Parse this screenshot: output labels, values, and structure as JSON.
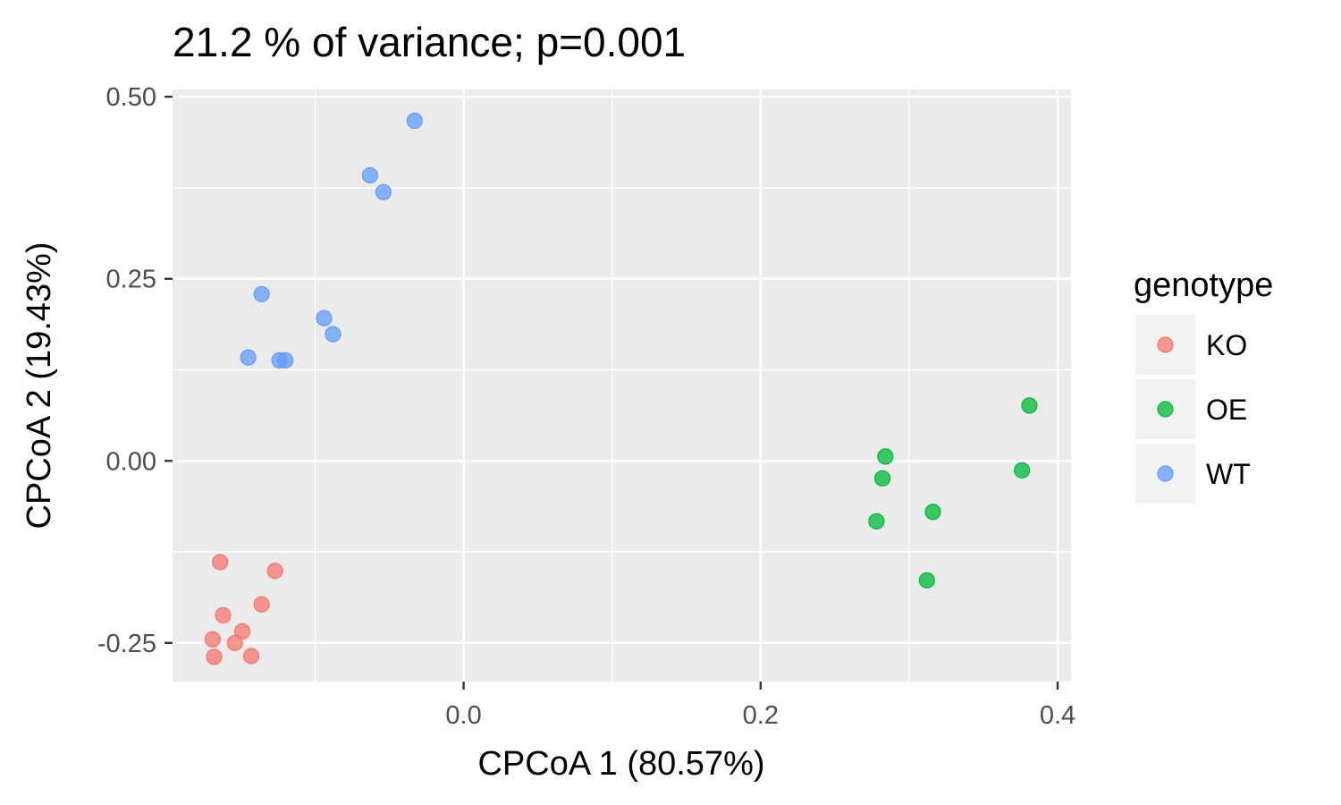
{
  "chart_data": {
    "type": "scatter",
    "title": "21.2 % of variance; p=0.001",
    "xlabel": "CPCoA 1 (80.57%)",
    "ylabel": "CPCoA 2 (19.43%)",
    "xlim": [
      -0.196,
      0.409
    ],
    "ylim": [
      -0.303,
      0.51
    ],
    "x_ticks": [
      0.0,
      0.2,
      0.4
    ],
    "x_tick_labels": [
      "0.0",
      "0.2",
      "0.4"
    ],
    "y_ticks": [
      0.5,
      0.25,
      0.0,
      -0.25
    ],
    "y_tick_labels": [
      "0.50",
      "0.25",
      "0.00",
      "-0.25"
    ],
    "grid": true,
    "legend": {
      "title": "genotype",
      "position": "right",
      "entries": [
        "KO",
        "OE",
        "WT"
      ]
    },
    "colors": {
      "KO": "#F8766D",
      "OE": "#00BA38",
      "WT": "#619CFF"
    },
    "series": [
      {
        "name": "KO",
        "points": [
          [
            -0.164,
            -0.139
          ],
          [
            -0.162,
            -0.212
          ],
          [
            -0.169,
            -0.245
          ],
          [
            -0.168,
            -0.269
          ],
          [
            -0.154,
            -0.25
          ],
          [
            -0.149,
            -0.234
          ],
          [
            -0.143,
            -0.268
          ],
          [
            -0.136,
            -0.197
          ],
          [
            -0.127,
            -0.151
          ]
        ]
      },
      {
        "name": "OE",
        "points": [
          [
            0.284,
            0.006
          ],
          [
            0.282,
            -0.024
          ],
          [
            0.278,
            -0.083
          ],
          [
            0.316,
            -0.07
          ],
          [
            0.312,
            -0.164
          ],
          [
            0.376,
            -0.013
          ],
          [
            0.381,
            0.076
          ]
        ]
      },
      {
        "name": "WT",
        "points": [
          [
            -0.033,
            0.467
          ],
          [
            -0.063,
            0.392
          ],
          [
            -0.054,
            0.369
          ],
          [
            -0.136,
            0.229
          ],
          [
            -0.094,
            0.196
          ],
          [
            -0.088,
            0.174
          ],
          [
            -0.145,
            0.142
          ],
          [
            -0.124,
            0.138
          ],
          [
            -0.12,
            0.138
          ]
        ]
      }
    ]
  }
}
